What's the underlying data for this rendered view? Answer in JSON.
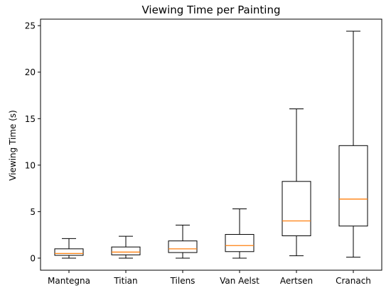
{
  "chart_data": {
    "type": "box",
    "title": "Viewing Time per Painting",
    "xlabel": "",
    "ylabel": "Viewing Time (s)",
    "ylim": [
      -1.3,
      25.7
    ],
    "yticks": [
      0,
      5,
      10,
      15,
      20,
      25
    ],
    "grid": false,
    "categories": [
      "Mantegna",
      "Titian",
      "Tilens",
      "Van Aelst",
      "Aertsen",
      "Cranach"
    ],
    "boxes": [
      {
        "whisker_low": 0.0,
        "q1": 0.3,
        "median": 0.5,
        "q3": 1.0,
        "whisker_high": 2.1
      },
      {
        "whisker_low": 0.0,
        "q1": 0.35,
        "median": 0.65,
        "q3": 1.2,
        "whisker_high": 2.35
      },
      {
        "whisker_low": 0.0,
        "q1": 0.6,
        "median": 1.0,
        "q3": 1.85,
        "whisker_high": 3.55
      },
      {
        "whisker_low": 0.0,
        "q1": 0.7,
        "median": 1.35,
        "q3": 2.55,
        "whisker_high": 5.3
      },
      {
        "whisker_low": 0.25,
        "q1": 2.4,
        "median": 4.0,
        "q3": 8.25,
        "whisker_high": 16.05
      },
      {
        "whisker_low": 0.1,
        "q1": 3.45,
        "median": 6.35,
        "q3": 12.1,
        "whisker_high": 24.4
      }
    ],
    "colors": {
      "box": "#000000",
      "median": "#ff7f0e"
    }
  }
}
